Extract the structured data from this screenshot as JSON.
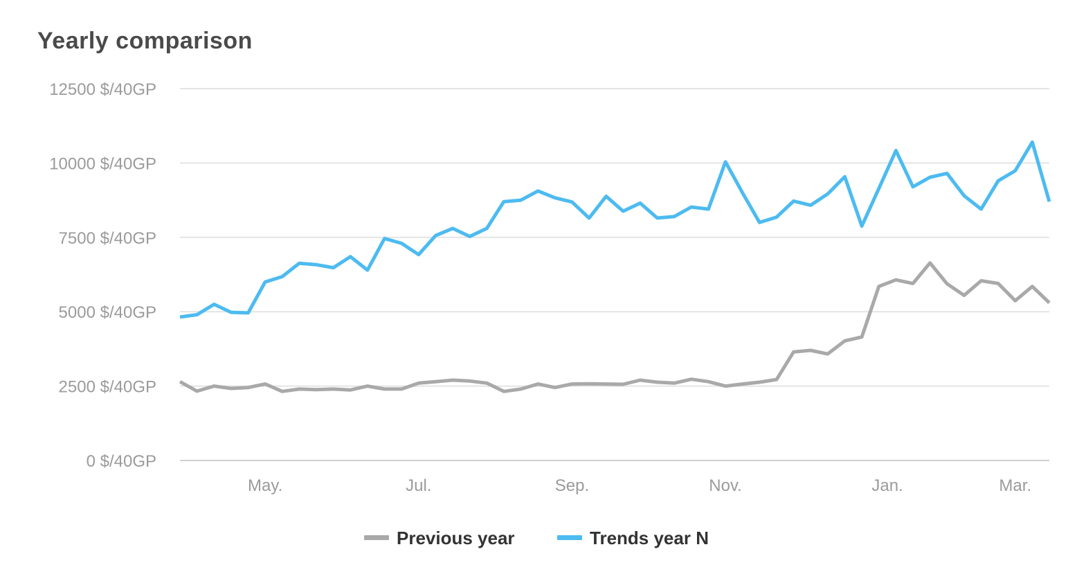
{
  "title": "Yearly comparison",
  "chart_data": {
    "type": "line",
    "title": "Yearly comparison",
    "xlabel": "",
    "ylabel": "",
    "ylim": [
      0,
      12500
    ],
    "y_ticks": [
      0,
      2500,
      5000,
      7500,
      10000,
      12500
    ],
    "y_tick_labels": [
      "0 $/40GP",
      "2500 $/40GP",
      "5000 $/40GP",
      "7500 $/40GP",
      "10000 $/40GP",
      "12500 $/40GP"
    ],
    "x_tick_labels": [
      "May.",
      "Jul.",
      "Sep.",
      "Nov.",
      "Jan.",
      "Mar."
    ],
    "x_tick_positions": [
      5,
      14,
      23,
      32,
      41.5,
      49
    ],
    "grid": true,
    "legend_position": "bottom",
    "series": [
      {
        "name": "Previous year",
        "color": "#a9a9a9",
        "values": [
          2650,
          2330,
          2500,
          2420,
          2450,
          2570,
          2320,
          2400,
          2380,
          2400,
          2370,
          2500,
          2400,
          2400,
          2600,
          2650,
          2700,
          2670,
          2600,
          2320,
          2400,
          2570,
          2450,
          2570,
          2580,
          2570,
          2560,
          2700,
          2630,
          2600,
          2730,
          2650,
          2500,
          2570,
          2630,
          2720,
          3650,
          3700,
          3580,
          4020,
          4150,
          5850,
          6070,
          5950,
          6640,
          5940,
          5550,
          6040,
          5950,
          5370,
          5850,
          5300
        ]
      },
      {
        "name": "Trends year N",
        "color": "#4dbbf0",
        "values": [
          4820,
          4900,
          5250,
          4980,
          4960,
          6000,
          6180,
          6630,
          6580,
          6480,
          6850,
          6400,
          7460,
          7300,
          6920,
          7560,
          7800,
          7530,
          7800,
          8700,
          8750,
          9060,
          8830,
          8690,
          8150,
          8880,
          8380,
          8650,
          8150,
          8200,
          8520,
          8450,
          10040,
          9000,
          8000,
          8180,
          8720,
          8580,
          8960,
          9540,
          7880,
          9140,
          10420,
          9200,
          9520,
          9650,
          8900,
          8450,
          9400,
          9740,
          10700,
          8700
        ]
      }
    ]
  }
}
